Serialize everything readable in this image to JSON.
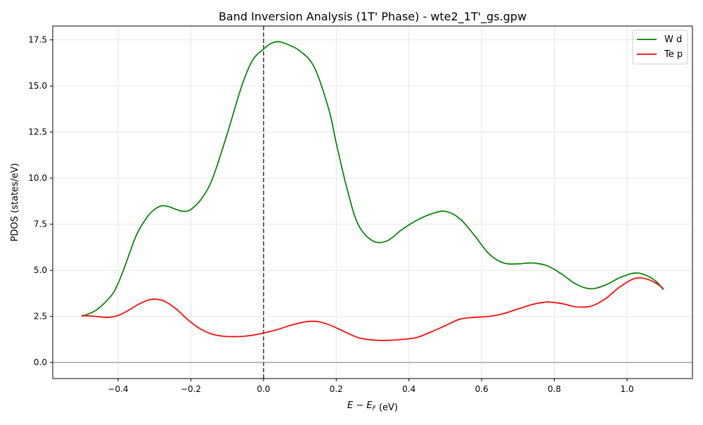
{
  "chart_data": {
    "type": "line",
    "title": "Band Inversion Analysis (1T' Phase) - wte2_1T'_gs.gpw",
    "xlabel": "E − E_F (eV)",
    "ylabel": "PDOS (states/eV)",
    "xlim": [
      -0.58,
      1.18
    ],
    "ylim": [
      -0.87,
      18.25
    ],
    "xticks": [
      -0.4,
      -0.2,
      0.0,
      0.2,
      0.4,
      0.6,
      0.8,
      1.0
    ],
    "xtick_labels": [
      "−0.4",
      "−0.2",
      "0.0",
      "0.2",
      "0.4",
      "0.6",
      "0.8",
      "1.0"
    ],
    "yticks": [
      0.0,
      2.5,
      5.0,
      7.5,
      10.0,
      12.5,
      15.0,
      17.5
    ],
    "ytick_labels": [
      "0.0",
      "2.5",
      "5.0",
      "7.5",
      "10.0",
      "12.5",
      "15.0",
      "17.5"
    ],
    "grid": true,
    "legend_position": "top-right",
    "reference_lines": [
      {
        "orientation": "vertical",
        "value": 0.0,
        "style": "dashed",
        "color": "#444444"
      },
      {
        "orientation": "horizontal",
        "value": 0.0,
        "style": "solid",
        "color": "#999999"
      }
    ],
    "series": [
      {
        "name": "W d",
        "color": "#008000",
        "x": [
          -0.5,
          -0.46,
          -0.42,
          -0.4,
          -0.38,
          -0.35,
          -0.32,
          -0.3,
          -0.28,
          -0.26,
          -0.24,
          -0.22,
          -0.2,
          -0.17,
          -0.14,
          -0.1,
          -0.06,
          -0.03,
          0.0,
          0.02,
          0.04,
          0.06,
          0.1,
          0.14,
          0.18,
          0.2,
          0.23,
          0.26,
          0.3,
          0.34,
          0.38,
          0.42,
          0.46,
          0.5,
          0.54,
          0.58,
          0.62,
          0.66,
          0.7,
          0.74,
          0.78,
          0.82,
          0.86,
          0.9,
          0.94,
          0.98,
          1.02,
          1.05,
          1.08,
          1.1
        ],
        "y": [
          2.5,
          2.85,
          3.6,
          4.3,
          5.3,
          6.9,
          7.9,
          8.3,
          8.5,
          8.45,
          8.3,
          8.2,
          8.3,
          8.9,
          10.0,
          12.4,
          15.0,
          16.4,
          17.0,
          17.3,
          17.4,
          17.3,
          16.9,
          16.0,
          13.7,
          11.9,
          9.4,
          7.5,
          6.6,
          6.6,
          7.2,
          7.7,
          8.05,
          8.2,
          7.8,
          6.9,
          5.9,
          5.4,
          5.35,
          5.4,
          5.25,
          4.8,
          4.25,
          4.0,
          4.2,
          4.6,
          4.85,
          4.75,
          4.4,
          3.95
        ]
      },
      {
        "name": "Te p",
        "color": "#ff0000",
        "x": [
          -0.5,
          -0.46,
          -0.43,
          -0.4,
          -0.37,
          -0.34,
          -0.31,
          -0.29,
          -0.27,
          -0.24,
          -0.21,
          -0.18,
          -0.15,
          -0.12,
          -0.08,
          -0.04,
          0.0,
          0.04,
          0.08,
          0.12,
          0.15,
          0.18,
          0.22,
          0.26,
          0.3,
          0.34,
          0.38,
          0.42,
          0.46,
          0.5,
          0.54,
          0.58,
          0.62,
          0.66,
          0.7,
          0.74,
          0.78,
          0.82,
          0.86,
          0.9,
          0.94,
          0.98,
          1.02,
          1.05,
          1.08,
          1.1
        ],
        "y": [
          2.55,
          2.5,
          2.45,
          2.55,
          2.85,
          3.2,
          3.42,
          3.42,
          3.3,
          2.9,
          2.35,
          1.9,
          1.6,
          1.45,
          1.4,
          1.45,
          1.6,
          1.8,
          2.05,
          2.22,
          2.22,
          2.05,
          1.7,
          1.35,
          1.22,
          1.2,
          1.25,
          1.35,
          1.65,
          2.0,
          2.35,
          2.45,
          2.5,
          2.65,
          2.9,
          3.15,
          3.28,
          3.2,
          3.02,
          3.05,
          3.45,
          4.1,
          4.55,
          4.55,
          4.3,
          4.0
        ]
      }
    ]
  }
}
